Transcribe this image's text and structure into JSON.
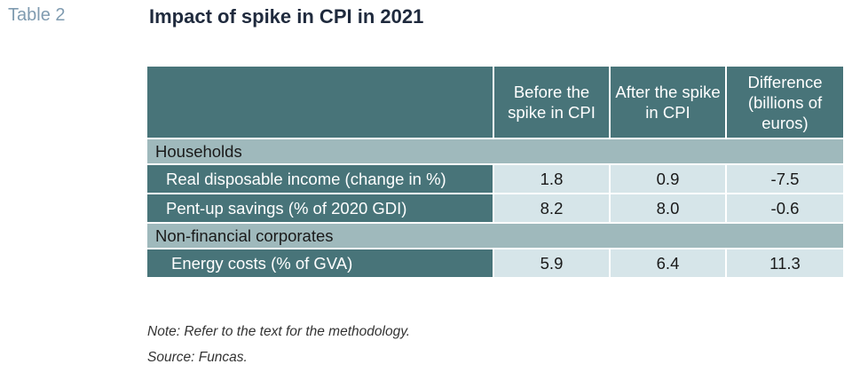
{
  "table_label": "Table 2",
  "title": "Impact of spike in CPI in 2021",
  "columns": [
    "Before the spike in CPI",
    "After the spike in CPI",
    "Difference (billions of euros)"
  ],
  "sections": [
    {
      "name": "Households",
      "rows": [
        {
          "label": "Real disposable income (change in %)",
          "values": [
            "1.8",
            "0.9",
            "-7.5"
          ]
        },
        {
          "label": "Pent-up savings (% of 2020 GDI)",
          "values": [
            "8.2",
            "8.0",
            "-0.6"
          ]
        }
      ]
    },
    {
      "name": "Non-financial corporates",
      "rows": [
        {
          "label": "Energy costs (% of GVA)",
          "values": [
            "5.9",
            "6.4",
            "11.3"
          ]
        }
      ]
    }
  ],
  "notes": {
    "note": "Note: Refer to the text for the methodology.",
    "source": "Source: Funcas."
  },
  "colors": {
    "header_bg": "#487479",
    "section_bg": "#9fb9bc",
    "value_bg": "#d6e5e9",
    "label_color": "#7f9bb0",
    "title_color": "#1f2a3d"
  }
}
